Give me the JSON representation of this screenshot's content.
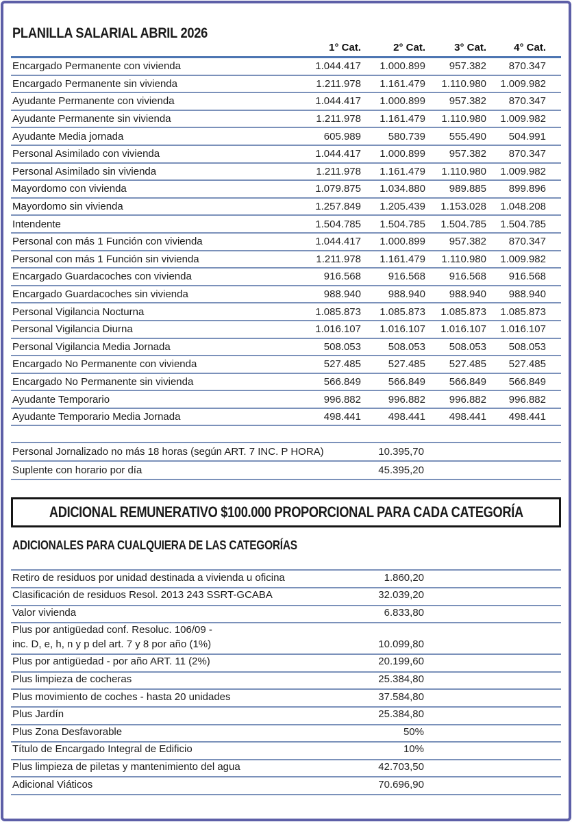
{
  "page": {
    "title": "PLANILLA SALARIAL ABRIL 2026",
    "border_color": "#5d5fa7",
    "rule_color": "#7b91ba",
    "header_rule_color": "#4d75b2"
  },
  "main_table": {
    "headers": [
      "1° Cat.",
      "2° Cat.",
      "3° Cat.",
      "4° Cat."
    ],
    "rows": [
      {
        "label": "Encargado Permanente con vivienda",
        "values": [
          "1.044.417",
          "1.000.899",
          "957.382",
          "870.347"
        ]
      },
      {
        "label": "Encargado Permanente sin vivienda",
        "values": [
          "1.211.978",
          "1.161.479",
          "1.110.980",
          "1.009.982"
        ]
      },
      {
        "label": "Ayudante Permanente con vivienda",
        "values": [
          "1.044.417",
          "1.000.899",
          "957.382",
          "870.347"
        ]
      },
      {
        "label": "Ayudante Permanente sin vivienda",
        "values": [
          "1.211.978",
          "1.161.479",
          "1.110.980",
          "1.009.982"
        ]
      },
      {
        "label": "Ayudante Media jornada",
        "values": [
          "605.989",
          "580.739",
          "555.490",
          "504.991"
        ]
      },
      {
        "label": "Personal Asimilado con vivienda",
        "values": [
          "1.044.417",
          "1.000.899",
          "957.382",
          "870.347"
        ]
      },
      {
        "label": "Personal Asimilado sin vivienda",
        "values": [
          "1.211.978",
          "1.161.479",
          "1.110.980",
          "1.009.982"
        ]
      },
      {
        "label": "Mayordomo con vivienda",
        "values": [
          "1.079.875",
          "1.034.880",
          "989.885",
          "899.896"
        ]
      },
      {
        "label": "Mayordomo sin vivienda",
        "values": [
          "1.257.849",
          "1.205.439",
          "1.153.028",
          "1.048.208"
        ]
      },
      {
        "label": "Intendente",
        "values": [
          "1.504.785",
          "1.504.785",
          "1.504.785",
          "1.504.785"
        ]
      },
      {
        "label": "Personal con más 1 Función con vivienda",
        "values": [
          "1.044.417",
          "1.000.899",
          "957.382",
          "870.347"
        ]
      },
      {
        "label": "Personal con más 1 Función sin vivienda",
        "values": [
          "1.211.978",
          "1.161.479",
          "1.110.980",
          "1.009.982"
        ]
      },
      {
        "label": "Encargado Guardacoches con vivienda",
        "values": [
          "916.568",
          "916.568",
          "916.568",
          "916.568"
        ]
      },
      {
        "label": "Encargado Guardacoches sin vivienda",
        "values": [
          "988.940",
          "988.940",
          "988.940",
          "988.940"
        ]
      },
      {
        "label": "Personal Vigilancia Nocturna",
        "values": [
          "1.085.873",
          "1.085.873",
          "1.085.873",
          "1.085.873"
        ]
      },
      {
        "label": "Personal Vigilancia Diurna",
        "values": [
          "1.016.107",
          "1.016.107",
          "1.016.107",
          "1.016.107"
        ]
      },
      {
        "label": "Personal Vigilancia Media Jornada",
        "values": [
          "508.053",
          "508.053",
          "508.053",
          "508.053"
        ]
      },
      {
        "label": "Encargado No Permanente con vivienda",
        "values": [
          "527.485",
          "527.485",
          "527.485",
          "527.485"
        ]
      },
      {
        "label": "Encargado No Permanente sin vivienda",
        "values": [
          "566.849",
          "566.849",
          "566.849",
          "566.849"
        ]
      },
      {
        "label": "Ayudante Temporario",
        "values": [
          "996.882",
          "996.882",
          "996.882",
          "996.882"
        ]
      },
      {
        "label": "Ayudante Temporario Media Jornada",
        "values": [
          "498.441",
          "498.441",
          "498.441",
          "498.441"
        ]
      }
    ]
  },
  "hourly_table": {
    "rows": [
      {
        "label": "Personal Jornalizado no más 18 horas (según ART. 7 INC. P HORA)",
        "value": "10.395,70"
      },
      {
        "label": "Suplente con horario por día",
        "value": "45.395,20"
      }
    ]
  },
  "banner": {
    "text": "ADICIONAL REMUNERATIVO $100.000 PROPORCIONAL PARA CADA CATEGORÍA"
  },
  "adicionales": {
    "title": "ADICIONALES PARA CUALQUIERA DE LAS CATEGORÍAS",
    "rows": [
      {
        "label": "Retiro de residuos por unidad destinada a vivienda u oficina",
        "value": "1.860,20"
      },
      {
        "label": "Clasificación de residuos Resol. 2013 243 SSRT-GCABA",
        "value": "32.039,20"
      },
      {
        "label": "Valor vivienda",
        "value": "6.833,80"
      },
      {
        "label": "Plus por antigüedad conf. Resoluc. 106/09 -\ninc. D, e, h, n y p del art. 7 y 8 por año (1%)",
        "value": "10.099,80"
      },
      {
        "label": "Plus por antigüedad - por año ART. 11 (2%)",
        "value": "20.199,60"
      },
      {
        "label": "Plus limpieza de cocheras",
        "value": "25.384,80"
      },
      {
        "label": "Plus movimiento de coches - hasta 20 unidades",
        "value": "37.584,80"
      },
      {
        "label": "Plus Jardín",
        "value": "25.384,80"
      },
      {
        "label": "Plus Zona Desfavorable",
        "value": "50%"
      },
      {
        "label": "Título de Encargado Integral de Edificio",
        "value": "10%"
      },
      {
        "label": "Plus limpieza de piletas y mantenimiento del agua",
        "value": "42.703,50"
      },
      {
        "label": "Adicional Viáticos",
        "value": "70.696,90"
      }
    ]
  }
}
